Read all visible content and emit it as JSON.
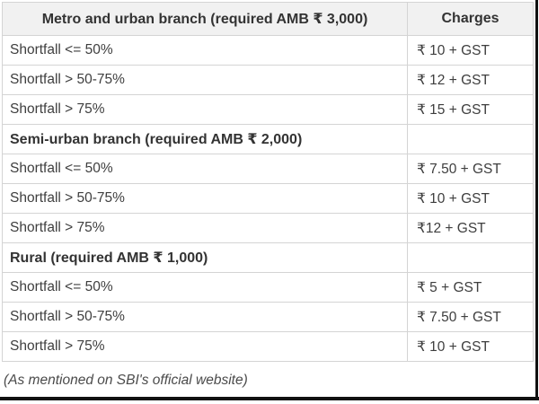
{
  "table": {
    "header": {
      "branch_column": "Metro and urban branch (required AMB ₹ 3,000)",
      "charges_column": "Charges"
    },
    "rows": [
      {
        "type": "data",
        "label": "Shortfall <= 50%",
        "charge": "₹ 10 + GST"
      },
      {
        "type": "data",
        "label": "Shortfall > 50-75%",
        "charge": "₹ 12 + GST"
      },
      {
        "type": "data",
        "label": "Shortfall > 75%",
        "charge": "₹ 15 + GST"
      },
      {
        "type": "section",
        "label": "Semi-urban branch (required AMB ₹ 2,000)",
        "charge": ""
      },
      {
        "type": "data",
        "label": "Shortfall <= 50%",
        "charge": "₹ 7.50 + GST"
      },
      {
        "type": "data",
        "label": "Shortfall > 50-75%",
        "charge": "₹ 10 + GST"
      },
      {
        "type": "data",
        "label": "Shortfall > 75%",
        "charge": "₹12 + GST"
      },
      {
        "type": "section",
        "label": "Rural (required AMB ₹ 1,000)",
        "charge": ""
      },
      {
        "type": "data",
        "label": "Shortfall <= 50%",
        "charge": "₹ 5 + GST"
      },
      {
        "type": "data",
        "label": "Shortfall > 50-75%",
        "charge": "₹ 7.50 + GST"
      },
      {
        "type": "data",
        "label": "Shortfall > 75%",
        "charge": "₹ 10 + GST"
      }
    ],
    "footer_note": "(As mentioned on SBI's official website)"
  },
  "colors": {
    "header_background": "#f1f1f1",
    "table_border": "#d4d4d4",
    "body_text": "#3e3e3e",
    "bold_text": "#333333",
    "footer_text": "#4a4a4a",
    "edge_bar": "#111111"
  }
}
